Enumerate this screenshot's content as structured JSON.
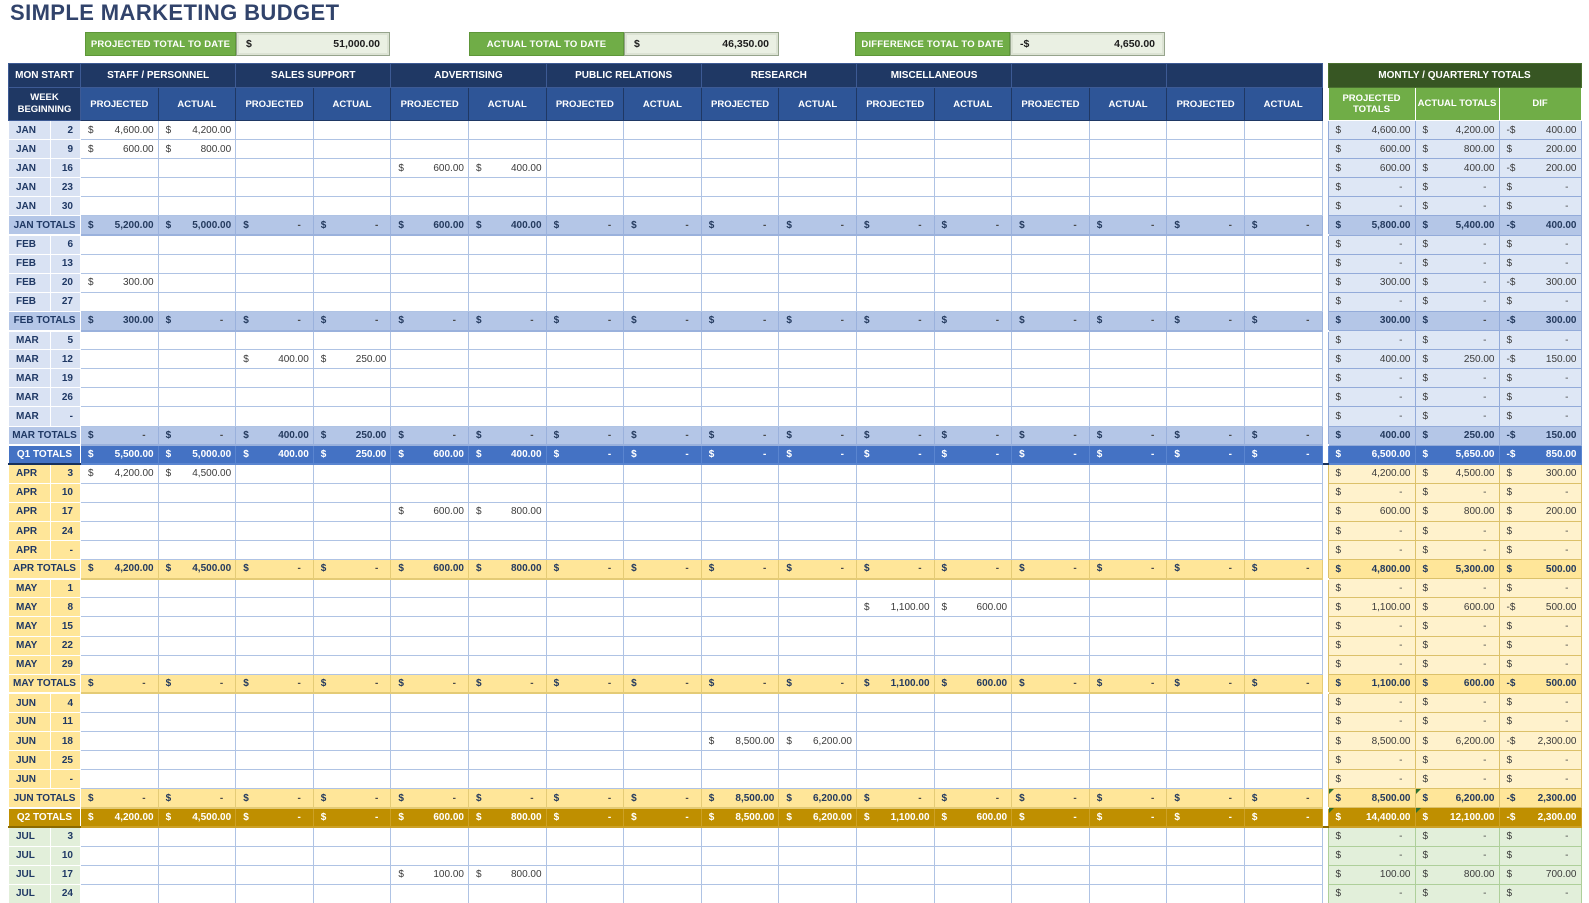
{
  "title": "SIMPLE MARKETING BUDGET",
  "summary": [
    {
      "label": "PROJECTED TOTAL TO DATE",
      "currency": "$",
      "value": "51,000.00"
    },
    {
      "label": "ACTUAL TOTAL TO DATE",
      "currency": "$",
      "value": "46,350.00"
    },
    {
      "label": "DIFFERENCE TOTAL TO DATE",
      "currency": "-$",
      "value": "4,650.00"
    }
  ],
  "colors": {
    "accent_green": "#70AD47",
    "totals_header_green": "#375623",
    "header_navy": "#1F3864",
    "subheader_blue": "#2E5597",
    "q1_label": "#D9E2F3",
    "q1_month_total": "#B4C6E7",
    "q1_quarter_total": "#4472C4",
    "q2_label": "#FFE699",
    "q2_tint": "#FFF2CC",
    "q2_quarter_total": "#BF8F00",
    "q3_label": "#E2EFDA",
    "flag_marker_green": "#2E7031"
  },
  "table": {
    "currency": "$",
    "corner_header": "MON START",
    "week_header": "WEEK BEGINNING",
    "col_groups": [
      "STAFF / PERSONNEL",
      "SALES SUPPORT",
      "ADVERTISING",
      "PUBLIC RELATIONS",
      "RESEARCH",
      "MISCELLANEOUS",
      "",
      ""
    ],
    "sub_headers": [
      "PROJECTED",
      "ACTUAL"
    ],
    "totals_group": "MONTLY / QUARTERLY TOTALS",
    "totals_headers": [
      "PROJECTED TOTALS",
      "ACTUAL TOTALS",
      "DIF"
    ],
    "rows": [
      {
        "month": "JAN",
        "day": "2",
        "type": "d",
        "q": 1,
        "cells": {
          "0": "4,600.00",
          "1": "4,200.00"
        },
        "totals": [
          "4,600.00",
          "4,200.00",
          "-400.00"
        ]
      },
      {
        "month": "JAN",
        "day": "9",
        "type": "d",
        "q": 1,
        "cells": {
          "0": "600.00",
          "1": "800.00"
        },
        "totals": [
          "600.00",
          "800.00",
          "200.00"
        ]
      },
      {
        "month": "JAN",
        "day": "16",
        "type": "d",
        "q": 1,
        "cells": {
          "4": "600.00",
          "5": "400.00"
        },
        "totals": [
          "600.00",
          "400.00",
          "-200.00"
        ]
      },
      {
        "month": "JAN",
        "day": "23",
        "type": "d",
        "q": 1,
        "cells": {},
        "totals": [
          "-",
          "-",
          "-"
        ]
      },
      {
        "month": "JAN",
        "day": "30",
        "type": "d",
        "q": 1,
        "cells": {},
        "totals": [
          "-",
          "-",
          "-"
        ]
      },
      {
        "label": "JAN TOTALS",
        "type": "m",
        "q": 1,
        "default": "-",
        "cells": {
          "0": "5,200.00",
          "1": "5,000.00",
          "4": "600.00",
          "5": "400.00"
        },
        "totals": [
          "5,800.00",
          "5,400.00",
          "-400.00"
        ]
      },
      {
        "month": "FEB",
        "day": "6",
        "type": "d",
        "q": 1,
        "cells": {},
        "totals": [
          "-",
          "-",
          "-"
        ]
      },
      {
        "month": "FEB",
        "day": "13",
        "type": "d",
        "q": 1,
        "cells": {},
        "totals": [
          "-",
          "-",
          "-"
        ]
      },
      {
        "month": "FEB",
        "day": "20",
        "type": "d",
        "q": 1,
        "cells": {
          "0": "300.00"
        },
        "totals": [
          "300.00",
          "-",
          "-300.00"
        ]
      },
      {
        "month": "FEB",
        "day": "27",
        "type": "d",
        "q": 1,
        "cells": {},
        "totals": [
          "-",
          "-",
          "-"
        ]
      },
      {
        "label": "FEB TOTALS",
        "type": "m",
        "q": 1,
        "default": "-",
        "cells": {
          "0": "300.00"
        },
        "totals": [
          "300.00",
          "-",
          "-300.00"
        ]
      },
      {
        "month": "MAR",
        "day": "5",
        "type": "d",
        "q": 1,
        "cells": {},
        "totals": [
          "-",
          "-",
          "-"
        ]
      },
      {
        "month": "MAR",
        "day": "12",
        "type": "d",
        "q": 1,
        "cells": {
          "2": "400.00",
          "3": "250.00"
        },
        "totals": [
          "400.00",
          "250.00",
          "-150.00"
        ]
      },
      {
        "month": "MAR",
        "day": "19",
        "type": "d",
        "q": 1,
        "cells": {},
        "totals": [
          "-",
          "-",
          "-"
        ]
      },
      {
        "month": "MAR",
        "day": "26",
        "type": "d",
        "q": 1,
        "cells": {},
        "totals": [
          "-",
          "-",
          "-"
        ]
      },
      {
        "month": "MAR",
        "day": "-",
        "type": "d",
        "q": 1,
        "cells": {},
        "totals": [
          "-",
          "-",
          "-"
        ]
      },
      {
        "label": "MAR TOTALS",
        "type": "m",
        "q": 1,
        "default": "-",
        "cells": {
          "2": "400.00",
          "3": "250.00"
        },
        "totals": [
          "400.00",
          "250.00",
          "-150.00"
        ]
      },
      {
        "label": "Q1 TOTALS",
        "type": "t",
        "q": 1,
        "default": "-",
        "cells": {
          "0": "5,500.00",
          "1": "5,000.00",
          "2": "400.00",
          "3": "250.00",
          "4": "600.00",
          "5": "400.00"
        },
        "totals": [
          "6,500.00",
          "5,650.00",
          "-850.00"
        ]
      },
      {
        "month": "APR",
        "day": "3",
        "type": "d",
        "q": 2,
        "cells": {
          "0": "4,200.00",
          "1": "4,500.00"
        },
        "totals": [
          "4,200.00",
          "4,500.00",
          "300.00"
        ]
      },
      {
        "month": "APR",
        "day": "10",
        "type": "d",
        "q": 2,
        "cells": {},
        "totals": [
          "-",
          "-",
          "-"
        ]
      },
      {
        "month": "APR",
        "day": "17",
        "type": "d",
        "q": 2,
        "cells": {
          "4": "600.00",
          "5": "800.00"
        },
        "totals": [
          "600.00",
          "800.00",
          "200.00"
        ]
      },
      {
        "month": "APR",
        "day": "24",
        "type": "d",
        "q": 2,
        "cells": {},
        "totals": [
          "-",
          "-",
          "-"
        ]
      },
      {
        "month": "APR",
        "day": "-",
        "type": "d",
        "q": 2,
        "cells": {},
        "totals": [
          "-",
          "-",
          "-"
        ]
      },
      {
        "label": "APR TOTALS",
        "type": "m",
        "q": 2,
        "default": "-",
        "cells": {
          "0": "4,200.00",
          "1": "4,500.00",
          "4": "600.00",
          "5": "800.00"
        },
        "totals": [
          "4,800.00",
          "5,300.00",
          "500.00"
        ]
      },
      {
        "month": "MAY",
        "day": "1",
        "type": "d",
        "q": 2,
        "cells": {},
        "totals": [
          "-",
          "-",
          "-"
        ]
      },
      {
        "month": "MAY",
        "day": "8",
        "type": "d",
        "q": 2,
        "cells": {
          "10": "1,100.00",
          "11": "600.00"
        },
        "totals": [
          "1,100.00",
          "600.00",
          "-500.00"
        ]
      },
      {
        "month": "MAY",
        "day": "15",
        "type": "d",
        "q": 2,
        "cells": {},
        "totals": [
          "-",
          "-",
          "-"
        ]
      },
      {
        "month": "MAY",
        "day": "22",
        "type": "d",
        "q": 2,
        "cells": {},
        "totals": [
          "-",
          "-",
          "-"
        ]
      },
      {
        "month": "MAY",
        "day": "29",
        "type": "d",
        "q": 2,
        "cells": {},
        "totals": [
          "-",
          "-",
          "-"
        ]
      },
      {
        "label": "MAY TOTALS",
        "type": "m",
        "q": 2,
        "default": "-",
        "cells": {
          "10": "1,100.00",
          "11": "600.00"
        },
        "totals": [
          "1,100.00",
          "600.00",
          "-500.00"
        ]
      },
      {
        "month": "JUN",
        "day": "4",
        "type": "d",
        "q": 2,
        "cells": {},
        "totals": [
          "-",
          "-",
          "-"
        ]
      },
      {
        "month": "JUN",
        "day": "11",
        "type": "d",
        "q": 2,
        "cells": {},
        "totals": [
          "-",
          "-",
          "-"
        ]
      },
      {
        "month": "JUN",
        "day": "18",
        "type": "d",
        "q": 2,
        "cells": {
          "8": "8,500.00",
          "9": "6,200.00"
        },
        "totals": [
          "8,500.00",
          "6,200.00",
          "-2,300.00"
        ]
      },
      {
        "month": "JUN",
        "day": "25",
        "type": "d",
        "q": 2,
        "cells": {},
        "totals": [
          "-",
          "-",
          "-"
        ]
      },
      {
        "month": "JUN",
        "day": "-",
        "type": "d",
        "q": 2,
        "cells": {},
        "totals": [
          "-",
          "-",
          "-"
        ]
      },
      {
        "label": "JUN TOTALS",
        "type": "m",
        "q": 2,
        "default": "-",
        "cells": {
          "8": "8,500.00",
          "9": "6,200.00"
        },
        "totals": [
          "8,500.00",
          "6,200.00",
          "-2,300.00"
        ],
        "flags": [
          0,
          1
        ]
      },
      {
        "label": "Q2 TOTALS",
        "type": "t",
        "q": 2,
        "default": "-",
        "cells": {
          "0": "4,200.00",
          "1": "4,500.00",
          "4": "600.00",
          "5": "800.00",
          "8": "8,500.00",
          "9": "6,200.00",
          "10": "1,100.00",
          "11": "600.00"
        },
        "totals": [
          "14,400.00",
          "12,100.00",
          "-2,300.00"
        ],
        "flags": [
          0,
          1
        ]
      },
      {
        "month": "JUL",
        "day": "3",
        "type": "d",
        "q": 3,
        "cells": {},
        "totals": [
          "-",
          "-",
          "-"
        ]
      },
      {
        "month": "JUL",
        "day": "10",
        "type": "d",
        "q": 3,
        "cells": {},
        "totals": [
          "-",
          "-",
          "-"
        ]
      },
      {
        "month": "JUL",
        "day": "17",
        "type": "d",
        "q": 3,
        "cells": {
          "4": "100.00",
          "5": "800.00"
        },
        "totals": [
          "100.00",
          "800.00",
          "700.00"
        ]
      },
      {
        "month": "JUL",
        "day": "24",
        "type": "d",
        "q": 3,
        "cells": {},
        "totals": [
          "-",
          "-",
          "-"
        ]
      }
    ]
  }
}
